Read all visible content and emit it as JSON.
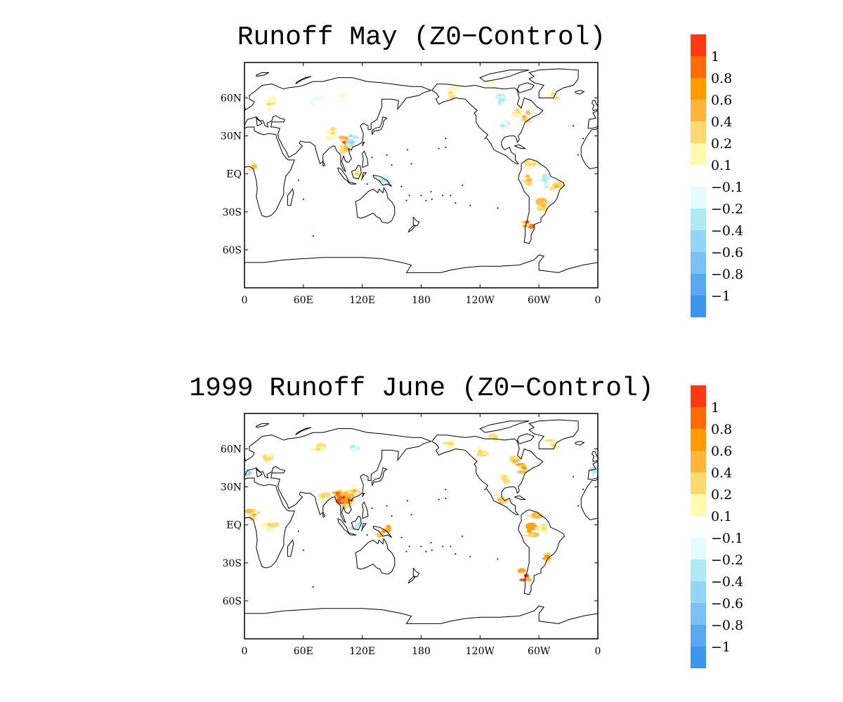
{
  "panels": [
    {
      "title": "Runoff May (Z0−Control)",
      "lat_labels": [
        "60N",
        "30N",
        "EQ",
        "30S",
        "60S"
      ],
      "lon_labels": [
        "0",
        "60E",
        "120E",
        "180",
        "120W",
        "60W",
        "0"
      ],
      "anomalies": [
        {
          "region": "north-america-east",
          "lon": 285,
          "lat": 45,
          "value": 0.4
        },
        {
          "region": "north-america-east-2",
          "lon": 278,
          "lat": 50,
          "value": 0.3
        },
        {
          "region": "alaska",
          "lon": 210,
          "lat": 64,
          "value": 0.2
        },
        {
          "region": "canada-north",
          "lon": 255,
          "lat": 68,
          "value": 0.15
        },
        {
          "region": "greenland-south",
          "lon": 315,
          "lat": 63,
          "value": 0.25
        },
        {
          "region": "hudson",
          "lon": 263,
          "lat": 58,
          "value": -0.3
        },
        {
          "region": "us-central",
          "lon": 263,
          "lat": 38,
          "value": -0.2
        },
        {
          "region": "yunnan",
          "lon": 102,
          "lat": 25,
          "value": 0.9
        },
        {
          "region": "indochina",
          "lon": 104,
          "lat": 20,
          "value": 0.5
        },
        {
          "region": "south-china",
          "lon": 110,
          "lat": 25,
          "value": -0.4
        },
        {
          "region": "tibet",
          "lon": 90,
          "lat": 32,
          "value": 0.2
        },
        {
          "region": "siberia-west",
          "lon": 75,
          "lat": 60,
          "value": -0.15
        },
        {
          "region": "siberia-central",
          "lon": 100,
          "lat": 62,
          "value": 0.15
        },
        {
          "region": "europe",
          "lon": 25,
          "lat": 55,
          "value": 0.2
        },
        {
          "region": "west-africa",
          "lon": 10,
          "lat": 6,
          "value": 0.4
        },
        {
          "region": "borneo",
          "lon": 115,
          "lat": 0,
          "value": 0.2
        },
        {
          "region": "new-guinea",
          "lon": 140,
          "lat": -5,
          "value": -0.3
        },
        {
          "region": "amazon-west",
          "lon": 290,
          "lat": -5,
          "value": 0.5
        },
        {
          "region": "amazon-east",
          "lon": 305,
          "lat": -5,
          "value": -0.3
        },
        {
          "region": "brazil-east",
          "lon": 318,
          "lat": -10,
          "value": 0.4
        },
        {
          "region": "southern-brazil",
          "lon": 305,
          "lat": -25,
          "value": 0.5
        },
        {
          "region": "andes-south",
          "lon": 288,
          "lat": -38,
          "value": 0.8
        },
        {
          "region": "venezuela",
          "lon": 295,
          "lat": 8,
          "value": 0.3
        }
      ]
    },
    {
      "title": "1999 Runoff June (Z0−Control)",
      "lat_labels": [
        "60N",
        "30N",
        "EQ",
        "30S",
        "60S"
      ],
      "lon_labels": [
        "0",
        "60E",
        "120E",
        "180",
        "120W",
        "60W",
        "0"
      ],
      "anomalies": [
        {
          "region": "north-america-east",
          "lon": 285,
          "lat": 45,
          "value": 0.6
        },
        {
          "region": "north-america-east-2",
          "lon": 275,
          "lat": 50,
          "value": 0.4
        },
        {
          "region": "alaska",
          "lon": 210,
          "lat": 64,
          "value": 0.3
        },
        {
          "region": "canada-west",
          "lon": 240,
          "lat": 58,
          "value": 0.3
        },
        {
          "region": "canada-north",
          "lon": 255,
          "lat": 68,
          "value": 0.2
        },
        {
          "region": "greenland-south",
          "lon": 315,
          "lat": 63,
          "value": 0.25
        },
        {
          "region": "us-central",
          "lon": 265,
          "lat": 38,
          "value": 0.3
        },
        {
          "region": "mexico",
          "lon": 260,
          "lat": 20,
          "value": 0.4
        },
        {
          "region": "yunnan",
          "lon": 100,
          "lat": 22,
          "value": 1.0
        },
        {
          "region": "bay-of-bengal-east",
          "lon": 95,
          "lat": 25,
          "value": 0.8
        },
        {
          "region": "indochina",
          "lon": 104,
          "lat": 18,
          "value": 0.7
        },
        {
          "region": "south-china",
          "lon": 112,
          "lat": 27,
          "value": 0.4
        },
        {
          "region": "india",
          "lon": 80,
          "lat": 22,
          "value": 0.3
        },
        {
          "region": "europe",
          "lon": 25,
          "lat": 52,
          "value": 0.3
        },
        {
          "region": "iberia",
          "lon": 0,
          "lat": 40,
          "value": -0.4
        },
        {
          "region": "siberia-west",
          "lon": 75,
          "lat": 60,
          "value": 0.2
        },
        {
          "region": "siberia-central",
          "lon": 110,
          "lat": 62,
          "value": -0.2
        },
        {
          "region": "west-africa",
          "lon": 10,
          "lat": 8,
          "value": 0.4
        },
        {
          "region": "central-africa",
          "lon": 25,
          "lat": 0,
          "value": 0.2
        },
        {
          "region": "borneo",
          "lon": 115,
          "lat": 0,
          "value": -0.3
        },
        {
          "region": "new-guinea",
          "lon": 142,
          "lat": -5,
          "value": 0.7
        },
        {
          "region": "amazon-west",
          "lon": 290,
          "lat": -5,
          "value": 0.6
        },
        {
          "region": "amazon-east",
          "lon": 305,
          "lat": -3,
          "value": 0.3
        },
        {
          "region": "southern-brazil",
          "lon": 308,
          "lat": -25,
          "value": 0.6
        },
        {
          "region": "andes-south",
          "lon": 287,
          "lat": -40,
          "value": 1.0
        },
        {
          "region": "venezuela",
          "lon": 295,
          "lat": 8,
          "value": 0.5
        }
      ]
    }
  ],
  "colorbar": {
    "labels": [
      "1",
      "0.8",
      "0.6",
      "0.4",
      "0.2",
      "0.1",
      "−0.1",
      "−0.2",
      "−0.4",
      "−0.6",
      "−0.8",
      "−1"
    ],
    "colors": [
      "#ff3a12",
      "#ff6a08",
      "#ff9a00",
      "#ffb43a",
      "#ffd970",
      "#fffab0",
      "#ffffff",
      "#e4fcfd",
      "#b0eaf2",
      "#94d4f4",
      "#7cc0f4",
      "#5aa8f2",
      "#3d96ee"
    ],
    "thresholds": [
      1.0,
      0.8,
      0.6,
      0.4,
      0.2,
      0.1,
      -0.1,
      -0.2,
      -0.4,
      -0.6,
      -0.8,
      -1.0
    ]
  }
}
